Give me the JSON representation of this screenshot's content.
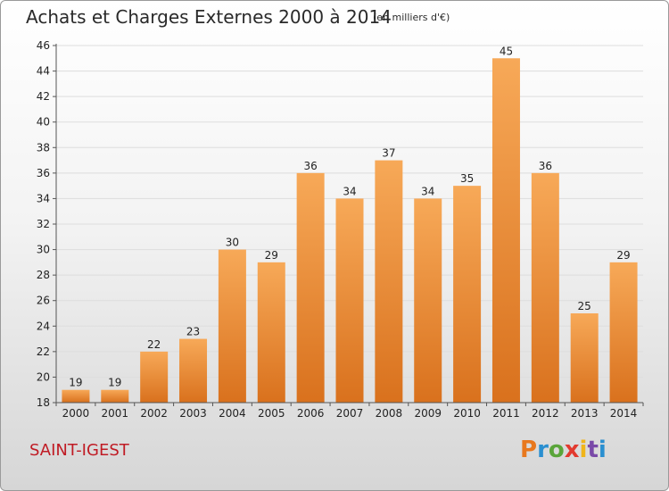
{
  "header": {
    "title": "Achats et Charges Externes 2000 à 2014",
    "subtitle": "(en milliers d'€)"
  },
  "footer": {
    "commune": "SAINT-IGEST",
    "logo_letters": [
      "P",
      "r",
      "o",
      "x",
      "i",
      "t",
      "i"
    ],
    "logo_colors": [
      "#e8781e",
      "#2a8fd0",
      "#5aa53a",
      "#e23a2f",
      "#f0b51a",
      "#7a4aa8",
      "#2a8fd0"
    ]
  },
  "colors": {
    "bar_top": "#f7a958",
    "bar_bottom": "#d9711d",
    "grid": "#dddddd",
    "axis": "#555555"
  },
  "chart_data": {
    "type": "bar",
    "title": "Achats et Charges Externes 2000 à 2014",
    "subtitle": "(en milliers d'€)",
    "categories": [
      "2000",
      "2001",
      "2002",
      "2003",
      "2004",
      "2005",
      "2006",
      "2007",
      "2008",
      "2009",
      "2010",
      "2011",
      "2012",
      "2013",
      "2014"
    ],
    "values": [
      19,
      19,
      22,
      23,
      30,
      29,
      36,
      34,
      37,
      34,
      35,
      45,
      36,
      25,
      29
    ],
    "ylim": [
      18,
      46
    ],
    "yticks": [
      18,
      20,
      22,
      24,
      26,
      28,
      30,
      32,
      34,
      36,
      38,
      40,
      42,
      44,
      46
    ],
    "grid": "horizontal",
    "legend": "none"
  }
}
